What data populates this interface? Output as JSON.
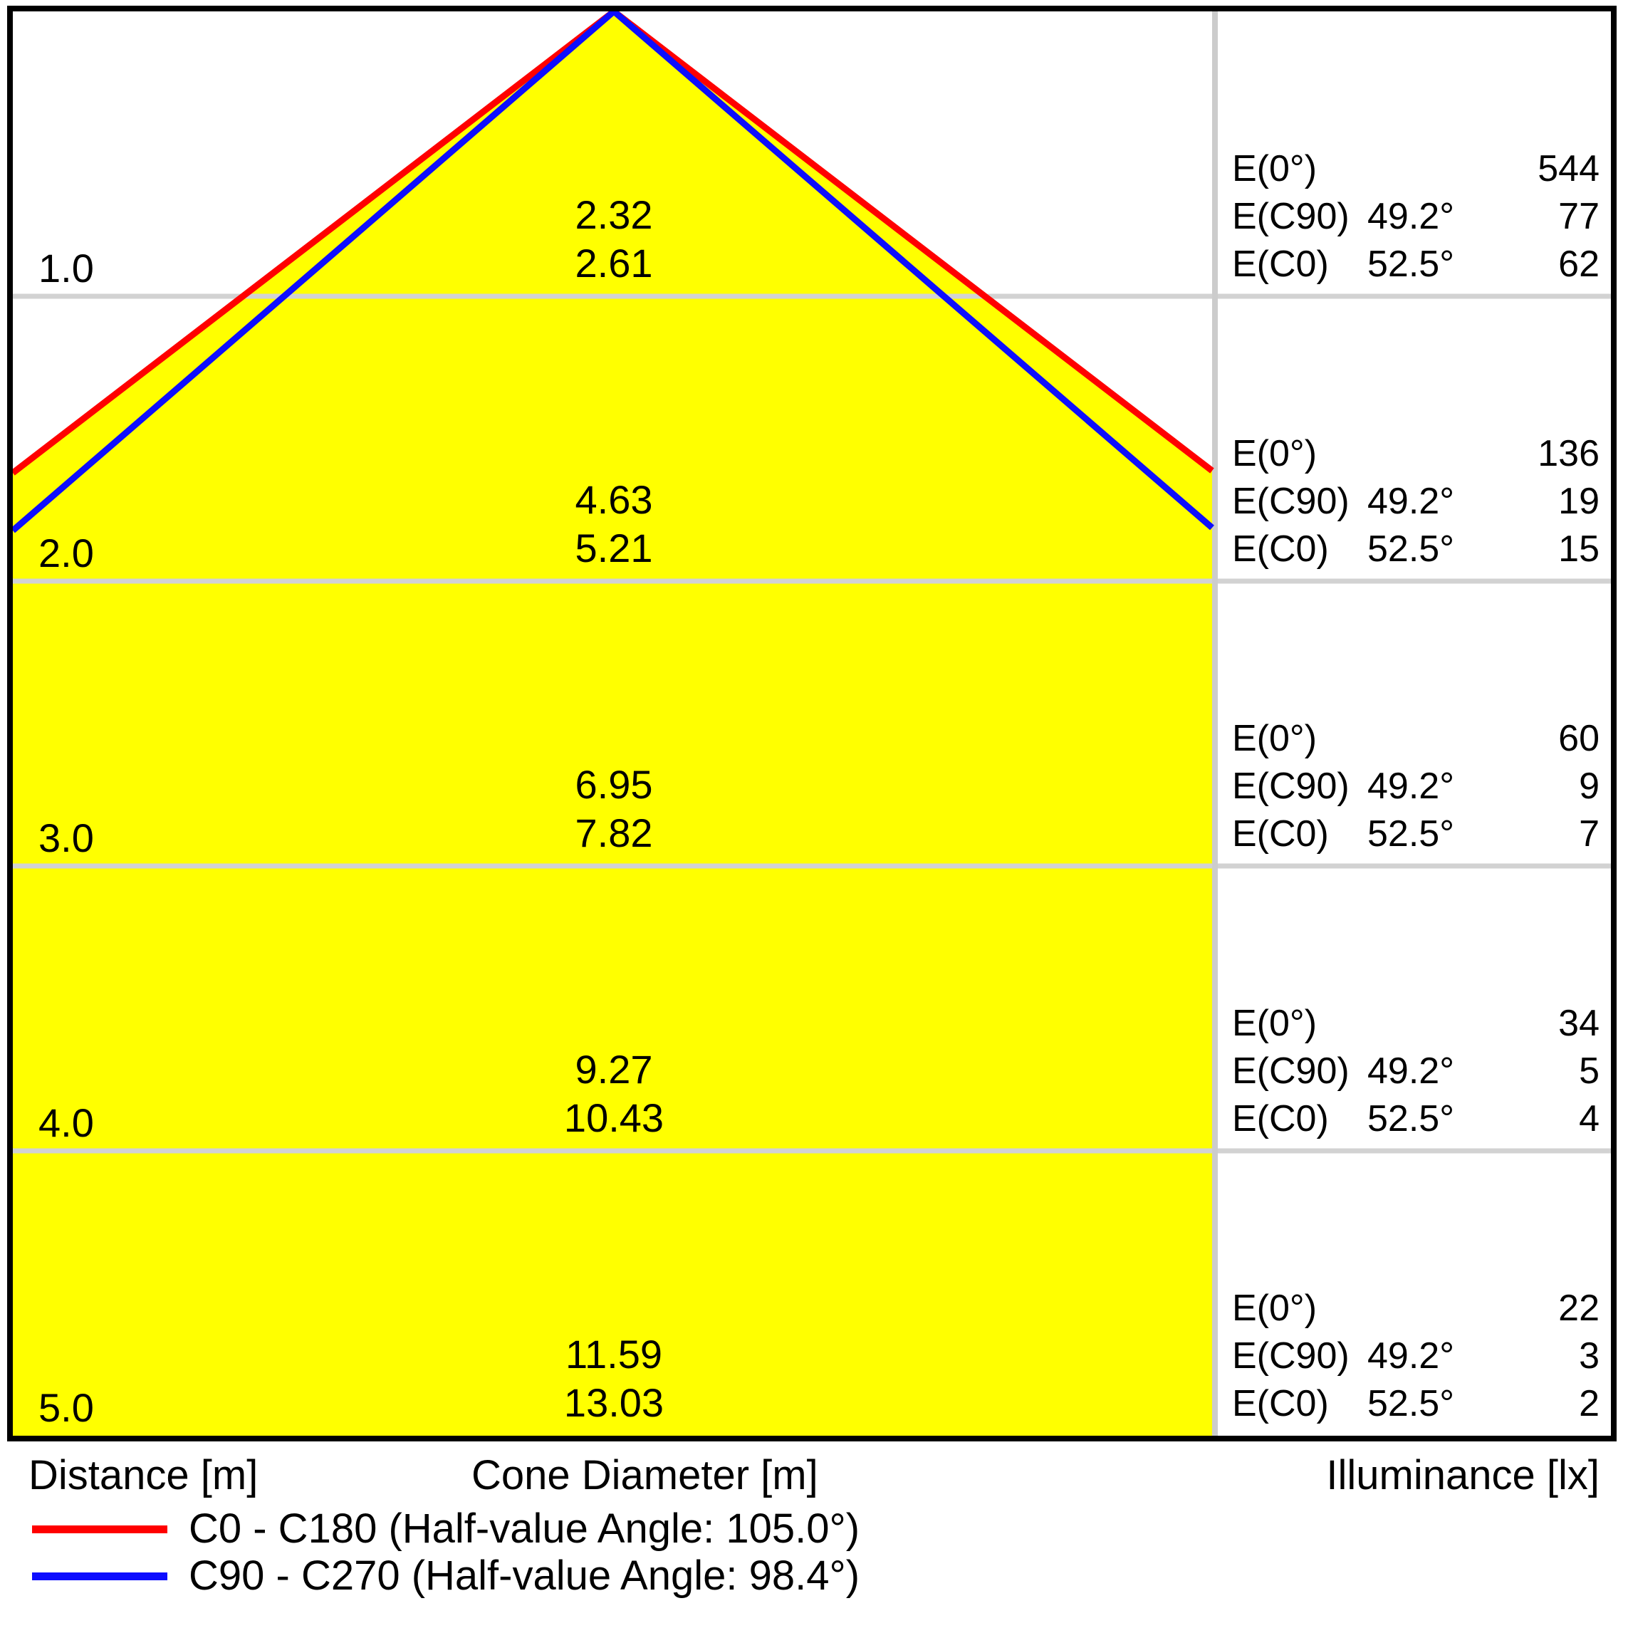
{
  "colors": {
    "cone_fill": "#ffff00",
    "c0_line": "#ff0000",
    "c90_line": "#0d0dff",
    "gridline": "#d2d2d2",
    "divider": "#cccccc",
    "border": "#000000"
  },
  "chart_data": {
    "type": "area",
    "subtype": "photometric-light-cone-diagram",
    "distance_label": "Distance [m]",
    "cone_diameter_label": "Cone Diameter [m]",
    "illuminance_label": "Illuminance [lx]",
    "half_value_angles": {
      "c0_c180": 105.0,
      "c90_c270": 98.4
    },
    "legend": [
      {
        "series": "C0 - C180",
        "color": "#ff0000",
        "label": "C0 - C180 (Half-value Angle: 105.0°)"
      },
      {
        "series": "C90 - C270",
        "color": "#0d0dff",
        "label": "C90 - C270 (Half-value Angle: 98.4°)"
      }
    ],
    "rows": [
      {
        "distance": "1.0",
        "cone_diameters": [
          "2.32",
          "2.61"
        ],
        "illuminance": [
          {
            "label": "E(0°)",
            "angle": "",
            "value": "544"
          },
          {
            "label": "E(C90)",
            "angle": "49.2°",
            "value": "77"
          },
          {
            "label": "E(C0)",
            "angle": "52.5°",
            "value": "62"
          }
        ]
      },
      {
        "distance": "2.0",
        "cone_diameters": [
          "4.63",
          "5.21"
        ],
        "illuminance": [
          {
            "label": "E(0°)",
            "angle": "",
            "value": "136"
          },
          {
            "label": "E(C90)",
            "angle": "49.2°",
            "value": "19"
          },
          {
            "label": "E(C0)",
            "angle": "52.5°",
            "value": "15"
          }
        ]
      },
      {
        "distance": "3.0",
        "cone_diameters": [
          "6.95",
          "7.82"
        ],
        "illuminance": [
          {
            "label": "E(0°)",
            "angle": "",
            "value": "60"
          },
          {
            "label": "E(C90)",
            "angle": "49.2°",
            "value": "9"
          },
          {
            "label": "E(C0)",
            "angle": "52.5°",
            "value": "7"
          }
        ]
      },
      {
        "distance": "4.0",
        "cone_diameters": [
          "9.27",
          "10.43"
        ],
        "illuminance": [
          {
            "label": "E(0°)",
            "angle": "",
            "value": "34"
          },
          {
            "label": "E(C90)",
            "angle": "49.2°",
            "value": "5"
          },
          {
            "label": "E(C0)",
            "angle": "52.5°",
            "value": "4"
          }
        ]
      },
      {
        "distance": "5.0",
        "cone_diameters": [
          "11.59",
          "13.03"
        ],
        "illuminance": [
          {
            "label": "E(0°)",
            "angle": "",
            "value": "22"
          },
          {
            "label": "E(C90)",
            "angle": "49.2°",
            "value": "3"
          },
          {
            "label": "E(C0)",
            "angle": "52.5°",
            "value": "2"
          }
        ]
      }
    ]
  }
}
